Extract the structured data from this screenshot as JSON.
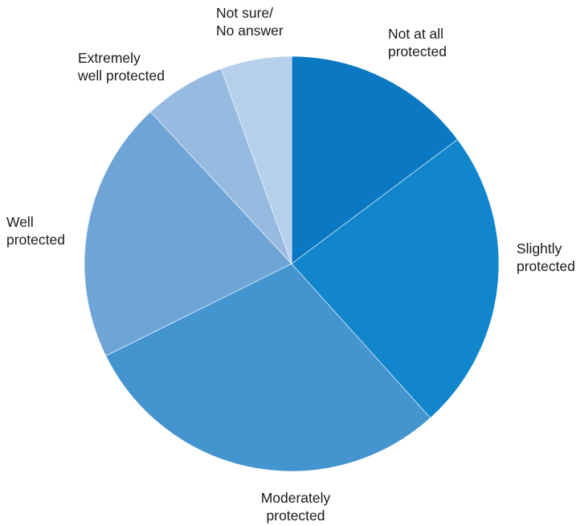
{
  "chart_data": {
    "type": "pie",
    "start_angle_deg": 0,
    "direction": "clockwise",
    "slices": [
      {
        "label": [
          "Not at all",
          "protected"
        ],
        "value": 15.0,
        "color": "#0a78c2"
      },
      {
        "label": [
          "Slightly",
          "protected"
        ],
        "value": 23.9,
        "color": "#1186cc"
      },
      {
        "label": [
          "Moderately",
          "protected"
        ],
        "value": 29.8,
        "color": "#4494d0"
      },
      {
        "label": [
          "Well",
          "protected"
        ],
        "value": 20.7,
        "color": "#6fa5d6"
      },
      {
        "label": [
          "Extremely",
          "well protected"
        ],
        "value": 6.5,
        "color": "#97bbe0"
      },
      {
        "label": [
          "Not sure/",
          "No answer"
        ],
        "value": 5.6,
        "color": "#b6cfeb"
      }
    ]
  }
}
